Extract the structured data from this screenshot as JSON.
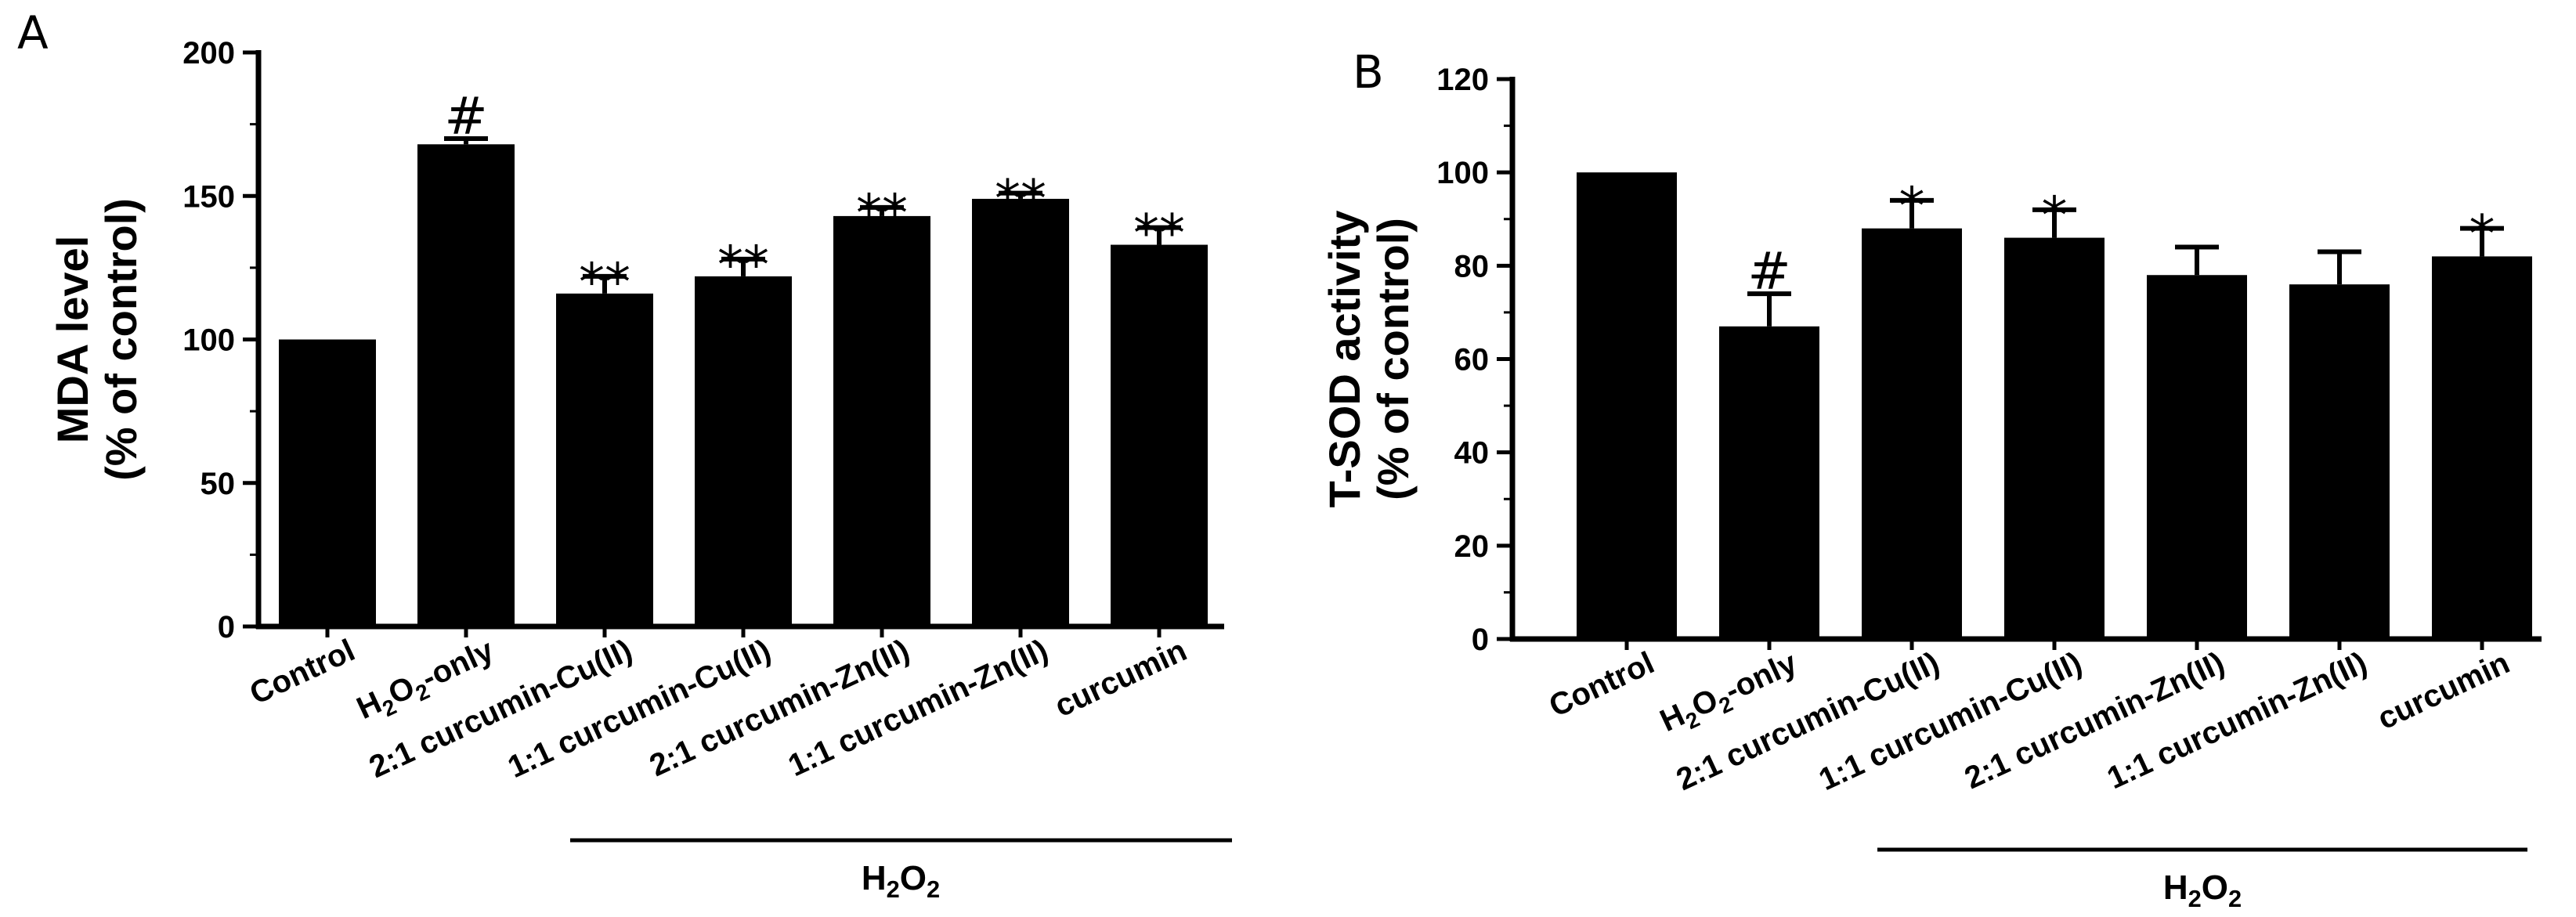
{
  "chart_data": [
    {
      "type": "bar",
      "panel_label": "A",
      "ylabel_line1": "MDA level",
      "ylabel_line2": "(% of control)",
      "ylim": [
        0,
        200
      ],
      "yticks": [
        "0",
        "50",
        "100",
        "150",
        "200"
      ],
      "categories": [
        "Control",
        "H2O2-only",
        "2:1 curcumin-Cu(II)",
        "1:1 curcumin-Cu(II)",
        "2:1 curcumin-Zn(II)",
        "1:1 curcumin-Zn(II)",
        "curcumin"
      ],
      "values": [
        100,
        168,
        116,
        122,
        143,
        149,
        133
      ],
      "errors": [
        0,
        2,
        6,
        6,
        3,
        2,
        6
      ],
      "significance": [
        "",
        "#",
        "**",
        "**",
        "**",
        "**",
        "**"
      ],
      "group_label": "H2O2"
    },
    {
      "type": "bar",
      "panel_label": "B",
      "ylabel_line1": "T-SOD activity",
      "ylabel_line2": "(% of control)",
      "ylim": [
        0,
        120
      ],
      "yticks": [
        "0",
        "20",
        "40",
        "60",
        "80",
        "100",
        "120"
      ],
      "categories": [
        "Control",
        "H2O2-only",
        "2:1 curcumin-Cu(II)",
        "1:1 curcumin-Cu(II)",
        "2:1 curcumin-Zn(II)",
        "1:1 curcumin-Zn(II)",
        "curcumin"
      ],
      "values": [
        100,
        67,
        88,
        86,
        78,
        76,
        82
      ],
      "errors": [
        0,
        7,
        6,
        6,
        6,
        7,
        6
      ],
      "significance": [
        "",
        "#",
        "*",
        "*",
        "",
        "",
        "*"
      ],
      "group_label": "H2O2"
    }
  ]
}
